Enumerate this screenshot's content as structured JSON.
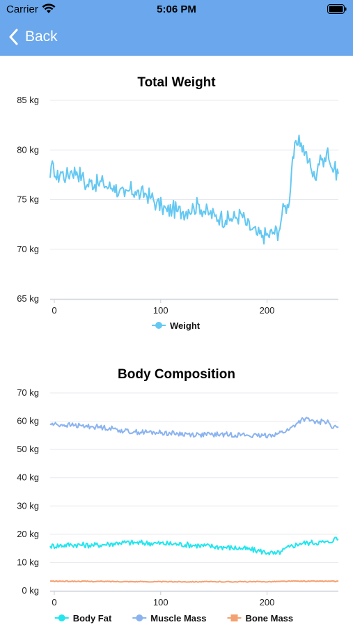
{
  "status_bar": {
    "carrier": "Carrier",
    "time": "5:06 PM",
    "icons": [
      "wifi-icon",
      "battery-icon"
    ]
  },
  "nav": {
    "back_label": "Back",
    "back_icon": "chevron-left-icon",
    "bar_color": "#6aa7ec"
  },
  "chart_data": [
    {
      "type": "line",
      "title": "Total Weight",
      "xlabel": "",
      "ylabel": "",
      "xlim": [
        0,
        271
      ],
      "ylim": [
        65,
        85
      ],
      "x_ticks": [
        "0",
        "100",
        "200"
      ],
      "y_ticks": [
        "85 kg",
        "80 kg",
        "75 kg",
        "70 kg",
        "65 kg"
      ],
      "grid": "horizontal",
      "legend_position": "bottom",
      "series": [
        {
          "name": "Weight",
          "color": "#64c8f2",
          "keypoints": [
            [
              0,
              77.2
            ],
            [
              3,
              78.6
            ],
            [
              6,
              77.0
            ],
            [
              10,
              77.8
            ],
            [
              15,
              77.3
            ],
            [
              20,
              77.9
            ],
            [
              25,
              77.8
            ],
            [
              30,
              77.4
            ],
            [
              34,
              76.3
            ],
            [
              38,
              76.8
            ],
            [
              45,
              76.6
            ],
            [
              50,
              76.7
            ],
            [
              55,
              76.2
            ],
            [
              60,
              76.4
            ],
            [
              65,
              75.8
            ],
            [
              70,
              75.3
            ],
            [
              75,
              76.0
            ],
            [
              80,
              75.8
            ],
            [
              85,
              75.5
            ],
            [
              90,
              75.6
            ],
            [
              95,
              75.2
            ],
            [
              100,
              74.6
            ],
            [
              105,
              74.3
            ],
            [
              110,
              73.8
            ],
            [
              115,
              74.1
            ],
            [
              120,
              73.8
            ],
            [
              125,
              73.8
            ],
            [
              130,
              74.0
            ],
            [
              135,
              74.2
            ],
            [
              140,
              74.5
            ],
            [
              145,
              73.8
            ],
            [
              150,
              73.6
            ],
            [
              155,
              73.3
            ],
            [
              160,
              73.3
            ],
            [
              165,
              72.9
            ],
            [
              170,
              73.1
            ],
            [
              175,
              73.2
            ],
            [
              180,
              73.5
            ],
            [
              185,
              72.4
            ],
            [
              190,
              72.0
            ],
            [
              195,
              71.4
            ],
            [
              200,
              71.4
            ],
            [
              205,
              71.4
            ],
            [
              210,
              71.7
            ],
            [
              215,
              71.8
            ],
            [
              218,
              73.5
            ],
            [
              221,
              74.4
            ],
            [
              224,
              74.2
            ],
            [
              228,
              79.3
            ],
            [
              232,
              80.5
            ],
            [
              236,
              80.7
            ],
            [
              240,
              79.8
            ],
            [
              243,
              78.8
            ],
            [
              246,
              77.8
            ],
            [
              249,
              77.1
            ],
            [
              252,
              78.6
            ],
            [
              255,
              79.0
            ],
            [
              258,
              79.2
            ],
            [
              261,
              80.2
            ],
            [
              264,
              78.3
            ],
            [
              267,
              78.1
            ],
            [
              271,
              77.6
            ]
          ]
        }
      ]
    },
    {
      "type": "line",
      "title": "Body Composition",
      "xlabel": "",
      "ylabel": "",
      "xlim": [
        0,
        271
      ],
      "ylim": [
        0,
        70
      ],
      "x_ticks": [
        "0",
        "100",
        "200"
      ],
      "y_ticks": [
        "70 kg",
        "60 kg",
        "50 kg",
        "40 kg",
        "30 kg",
        "20 kg",
        "10 kg",
        "0 kg"
      ],
      "grid": "horizontal",
      "legend_position": "bottom",
      "series": [
        {
          "name": "Body Fat",
          "color": "#22e5ee",
          "keypoints": [
            [
              0,
              15.8
            ],
            [
              20,
              16.3
            ],
            [
              40,
              16.1
            ],
            [
              55,
              16.5
            ],
            [
              65,
              17.0
            ],
            [
              80,
              17.0
            ],
            [
              100,
              16.8
            ],
            [
              120,
              16.5
            ],
            [
              140,
              16.0
            ],
            [
              160,
              15.5
            ],
            [
              180,
              15.0
            ],
            [
              195,
              14.2
            ],
            [
              205,
              13.5
            ],
            [
              212,
              13.0
            ],
            [
              218,
              14.0
            ],
            [
              225,
              15.5
            ],
            [
              235,
              16.8
            ],
            [
              245,
              17.0
            ],
            [
              255,
              17.2
            ],
            [
              262,
              17.0
            ],
            [
              267,
              18.5
            ],
            [
              271,
              18.2
            ]
          ]
        },
        {
          "name": "Muscle Mass",
          "color": "#8ab3ef",
          "keypoints": [
            [
              0,
              59.0
            ],
            [
              10,
              58.7
            ],
            [
              20,
              58.6
            ],
            [
              30,
              58.3
            ],
            [
              40,
              58.1
            ],
            [
              50,
              57.8
            ],
            [
              60,
              57.3
            ],
            [
              70,
              56.5
            ],
            [
              80,
              56.2
            ],
            [
              100,
              56.0
            ],
            [
              120,
              55.6
            ],
            [
              140,
              55.2
            ],
            [
              160,
              55.3
            ],
            [
              180,
              55.2
            ],
            [
              195,
              54.7
            ],
            [
              205,
              55.0
            ],
            [
              215,
              55.7
            ],
            [
              225,
              57.0
            ],
            [
              232,
              59.3
            ],
            [
              238,
              60.8
            ],
            [
              245,
              60.2
            ],
            [
              252,
              59.3
            ],
            [
              257,
              60.2
            ],
            [
              262,
              59.5
            ],
            [
              266,
              57.5
            ],
            [
              271,
              58.0
            ]
          ]
        },
        {
          "name": "Bone Mass",
          "color": "#f4a070",
          "keypoints": [
            [
              0,
              3.4
            ],
            [
              50,
              3.3
            ],
            [
              100,
              3.2
            ],
            [
              150,
              3.2
            ],
            [
              200,
              3.2
            ],
            [
              230,
              3.4
            ],
            [
              260,
              3.4
            ],
            [
              271,
              3.3
            ]
          ]
        }
      ]
    }
  ]
}
